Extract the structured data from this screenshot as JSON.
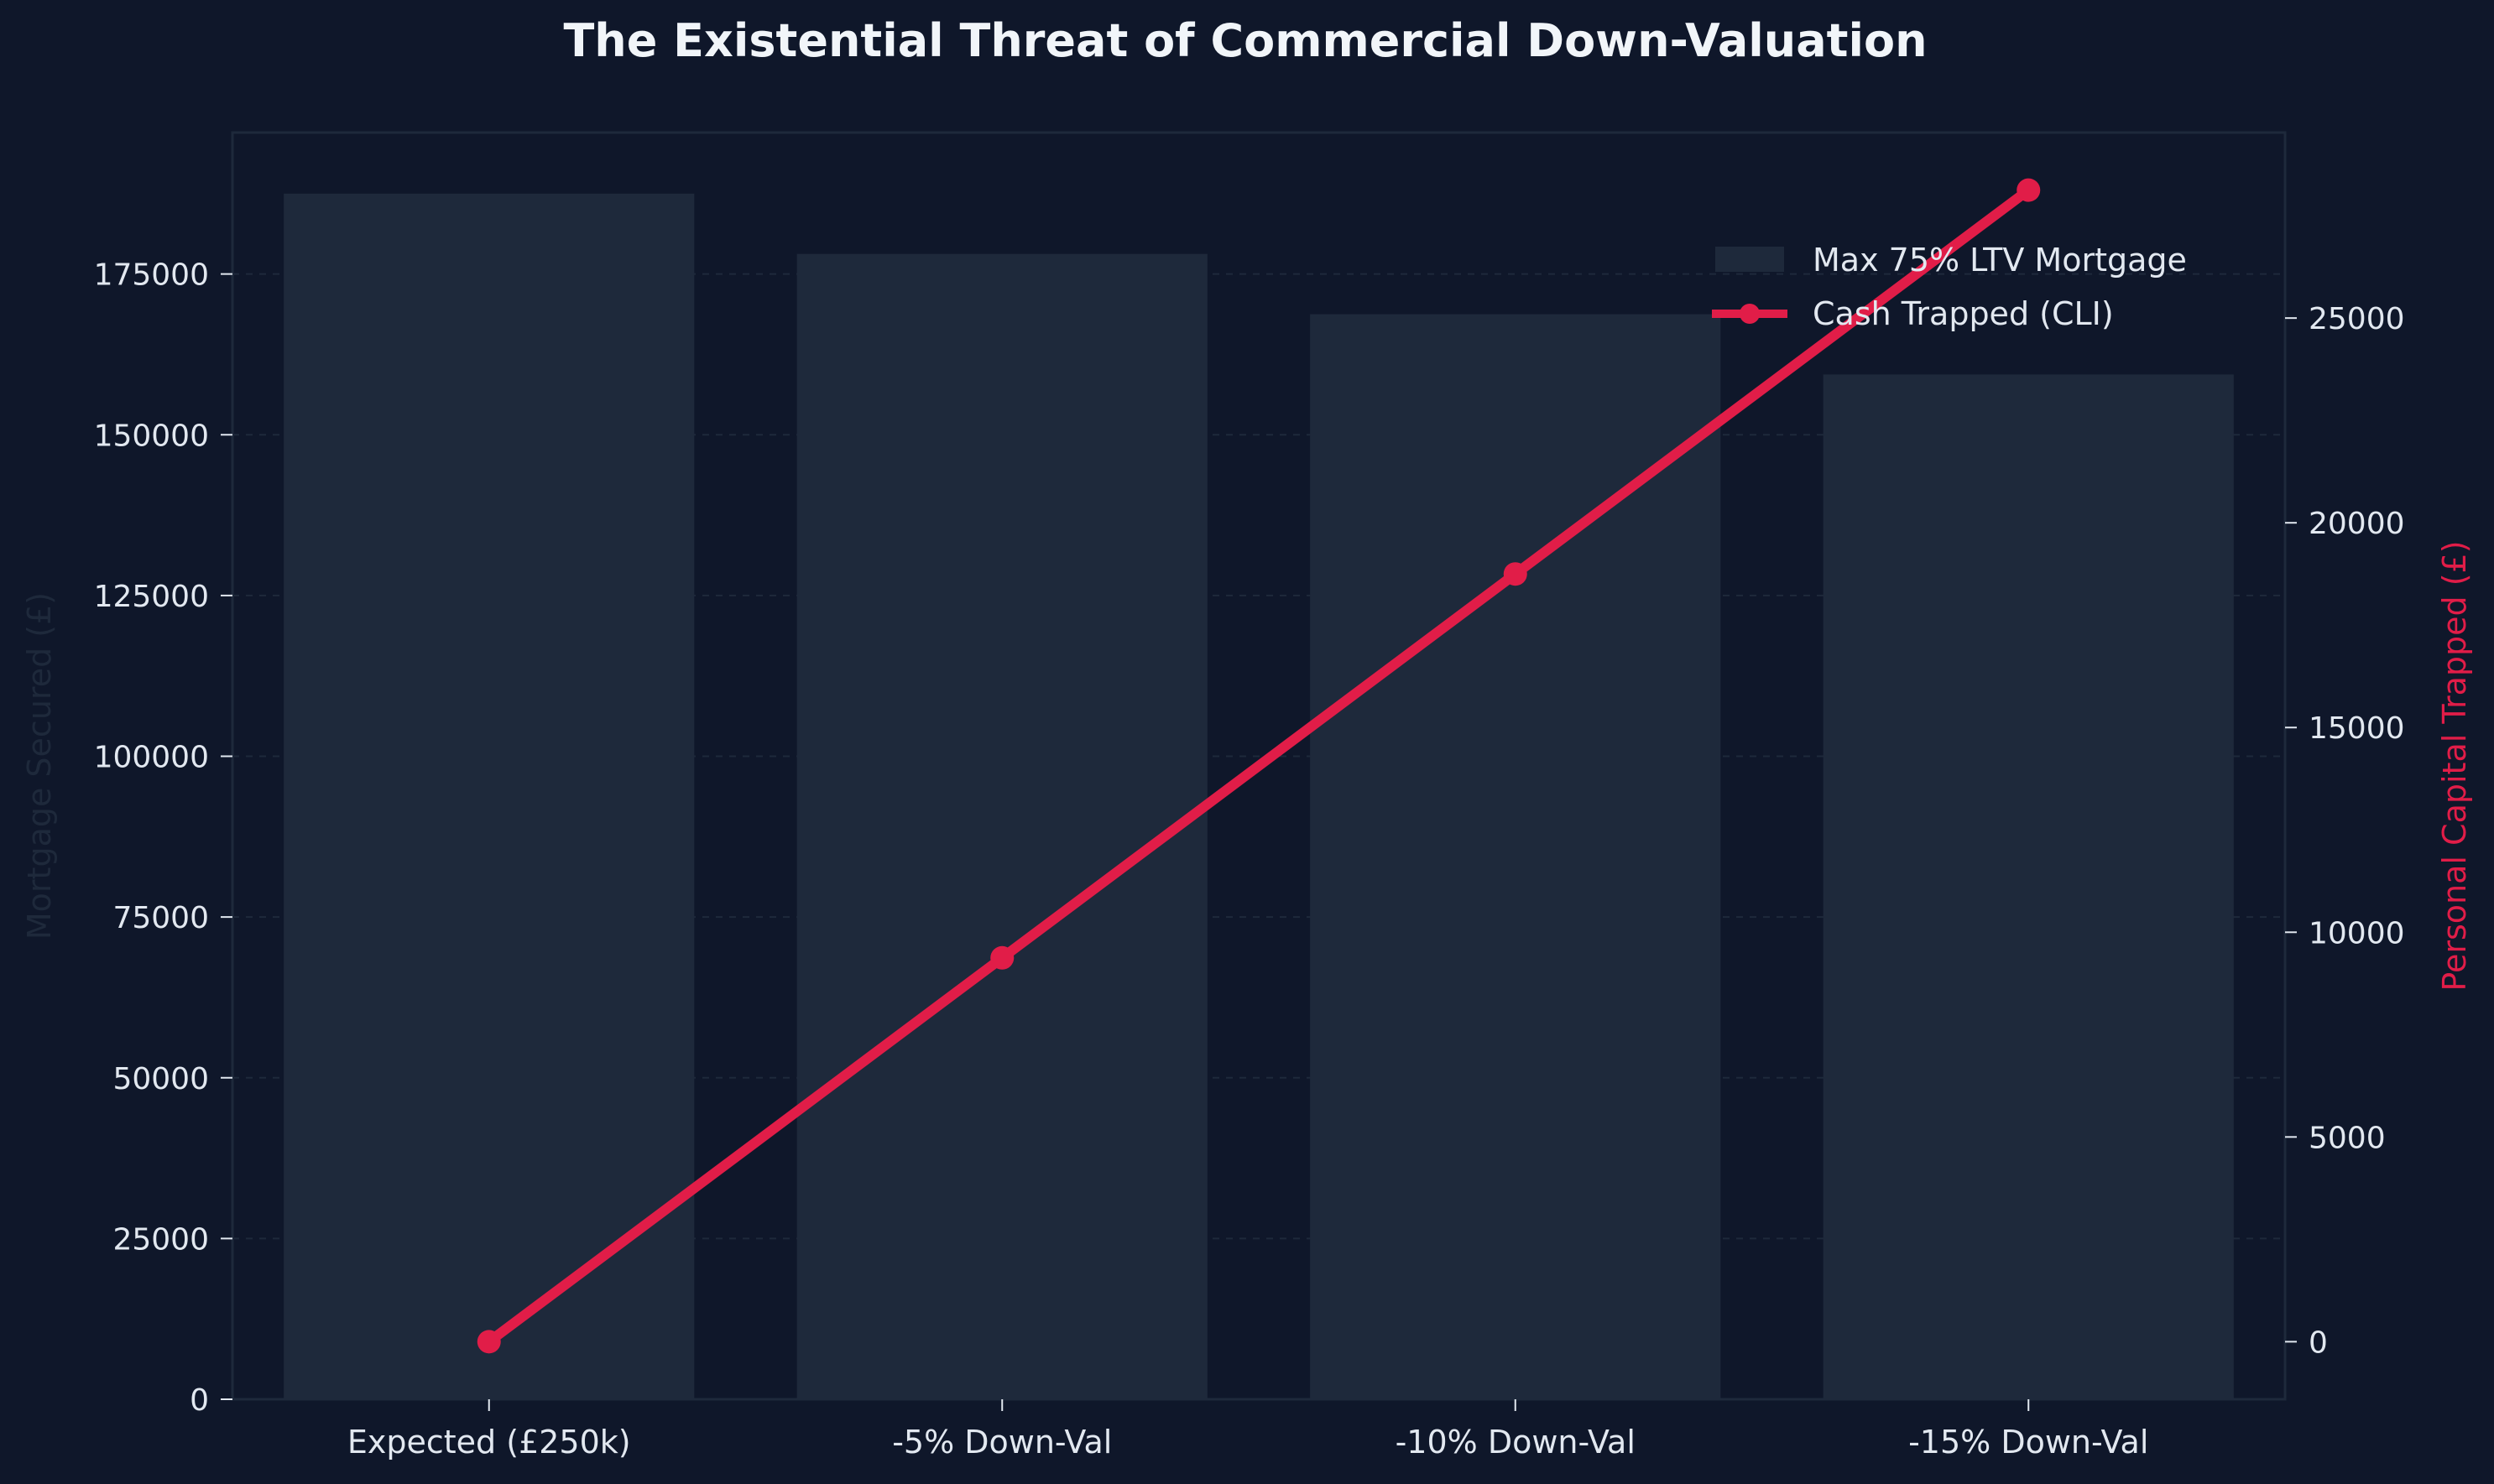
{
  "chart_data": {
    "type": "bar+line",
    "title": "The Existential Threat of Commercial Down-Valuation",
    "categories": [
      "Expected (£250k)",
      "-5% Down-Val",
      "-10% Down-Val",
      "-15% Down-Val"
    ],
    "left_axis": {
      "label": "Mortgage Secured (£)",
      "ylim": [
        0,
        197000
      ],
      "ticks": [
        0,
        25000,
        50000,
        75000,
        100000,
        125000,
        150000,
        175000
      ],
      "tick_labels": [
        "0",
        "25000",
        "50000",
        "75000",
        "100000",
        "125000",
        "150000",
        "175000"
      ]
    },
    "right_axis": {
      "label": "Personal Capital Trapped (£)",
      "ylim": [
        -1406,
        29531
      ],
      "ticks": [
        0,
        5000,
        10000,
        15000,
        20000,
        25000
      ],
      "tick_labels": [
        "0",
        "5000",
        "10000",
        "15000",
        "20000",
        "25000"
      ]
    },
    "series": [
      {
        "name": "Max 75% LTV Mortgage",
        "kind": "bar",
        "axis": "left",
        "values": [
          187500,
          178125,
          168750,
          159375
        ]
      },
      {
        "name": "Cash Trapped (CLI)",
        "kind": "line",
        "axis": "right",
        "values": [
          0,
          9375,
          18750,
          28125
        ]
      }
    ],
    "legend": {
      "position": "top-right",
      "items": [
        "Max 75% LTV Mortgage",
        "Cash Trapped (CLI)"
      ]
    },
    "grid": "horizontal-dashed",
    "colors": {
      "background": "#0f172a",
      "bar": "#1e293b",
      "line": "#e11d48",
      "text": "#e2e8f0",
      "left_label": "#1e293b",
      "grid": "#1e293b"
    }
  }
}
